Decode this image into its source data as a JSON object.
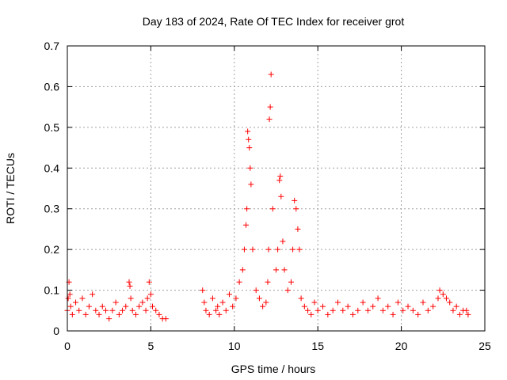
{
  "chart_data": {
    "type": "scatter",
    "title": "Day 183 of 2024, Rate Of TEC Index for receiver grot",
    "xlabel": "GPS time / hours",
    "ylabel": "ROTI / TECUs",
    "xlim": [
      0,
      25
    ],
    "ylim": [
      0,
      0.7
    ],
    "xticks": [
      0,
      5,
      10,
      15,
      20,
      25
    ],
    "yticks": [
      0,
      0.1,
      0.2,
      0.3,
      0.4,
      0.5,
      0.6,
      0.7
    ],
    "grid": true,
    "marker": "+",
    "color": "#ff0000",
    "series": [
      {
        "name": "ROTI",
        "x": [
          0.0,
          0.05,
          0.1,
          0.15,
          0.2,
          0.3,
          0.5,
          0.7,
          0.9,
          1.1,
          1.3,
          1.5,
          1.7,
          1.9,
          2.1,
          2.3,
          2.5,
          2.7,
          2.9,
          3.1,
          3.3,
          3.5,
          3.7,
          3.75,
          3.8,
          3.9,
          4.1,
          4.3,
          4.5,
          4.7,
          4.8,
          4.9,
          5.0,
          5.1,
          5.3,
          5.5,
          5.7,
          5.9,
          8.1,
          8.2,
          8.3,
          8.5,
          8.7,
          8.9,
          9.0,
          9.1,
          9.3,
          9.5,
          9.7,
          9.9,
          10.1,
          10.3,
          10.5,
          10.6,
          10.7,
          10.75,
          10.8,
          10.85,
          10.9,
          10.95,
          11.0,
          11.1,
          11.3,
          11.5,
          11.7,
          11.9,
          12.0,
          12.05,
          12.1,
          12.15,
          12.2,
          12.3,
          12.5,
          12.6,
          12.7,
          12.75,
          12.8,
          12.9,
          13.0,
          13.2,
          13.4,
          13.5,
          13.6,
          13.7,
          13.8,
          13.9,
          14.0,
          14.2,
          14.4,
          14.6,
          14.8,
          15.0,
          15.3,
          15.6,
          15.9,
          16.2,
          16.5,
          16.8,
          17.1,
          17.4,
          17.7,
          18.0,
          18.3,
          18.6,
          18.9,
          19.2,
          19.5,
          19.8,
          20.1,
          20.4,
          20.7,
          21.0,
          21.3,
          21.6,
          21.9,
          22.2,
          22.3,
          22.5,
          22.7,
          22.9,
          23.1,
          23.3,
          23.5,
          23.7,
          23.9,
          24.0
        ],
        "y": [
          0.05,
          0.08,
          0.12,
          0.09,
          0.06,
          0.04,
          0.07,
          0.05,
          0.08,
          0.04,
          0.06,
          0.09,
          0.05,
          0.04,
          0.06,
          0.05,
          0.03,
          0.05,
          0.07,
          0.04,
          0.05,
          0.06,
          0.12,
          0.11,
          0.08,
          0.05,
          0.04,
          0.06,
          0.07,
          0.05,
          0.08,
          0.12,
          0.09,
          0.06,
          0.05,
          0.04,
          0.03,
          0.03,
          0.1,
          0.07,
          0.05,
          0.04,
          0.08,
          0.05,
          0.06,
          0.04,
          0.07,
          0.05,
          0.09,
          0.06,
          0.08,
          0.12,
          0.15,
          0.2,
          0.26,
          0.3,
          0.49,
          0.47,
          0.45,
          0.4,
          0.36,
          0.2,
          0.1,
          0.08,
          0.06,
          0.07,
          0.12,
          0.2,
          0.52,
          0.55,
          0.63,
          0.3,
          0.15,
          0.2,
          0.37,
          0.38,
          0.33,
          0.22,
          0.15,
          0.1,
          0.12,
          0.2,
          0.32,
          0.3,
          0.25,
          0.2,
          0.08,
          0.06,
          0.05,
          0.04,
          0.07,
          0.05,
          0.06,
          0.04,
          0.05,
          0.07,
          0.05,
          0.06,
          0.04,
          0.05,
          0.07,
          0.05,
          0.06,
          0.08,
          0.05,
          0.06,
          0.04,
          0.07,
          0.05,
          0.06,
          0.05,
          0.04,
          0.07,
          0.05,
          0.06,
          0.08,
          0.1,
          0.09,
          0.08,
          0.07,
          0.05,
          0.06,
          0.04,
          0.05,
          0.05,
          0.04
        ]
      }
    ]
  }
}
